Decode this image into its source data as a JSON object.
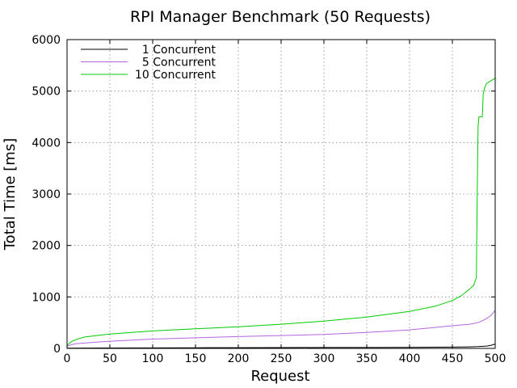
{
  "chart_data": {
    "type": "line",
    "title": "RPI Manager Benchmark (50 Requests)",
    "xlabel": "Request",
    "ylabel": "Total Time [ms]",
    "xlim": [
      0,
      500
    ],
    "ylim": [
      0,
      6000
    ],
    "xticks": [
      0,
      50,
      100,
      150,
      200,
      250,
      300,
      350,
      400,
      450,
      500
    ],
    "yticks": [
      0,
      1000,
      2000,
      3000,
      4000,
      5000,
      6000
    ],
    "grid": true,
    "legend_position": "top-left",
    "series": [
      {
        "name": "1 Concurrent",
        "color": "#000000",
        "x": [
          0,
          50,
          100,
          150,
          200,
          250,
          300,
          350,
          400,
          450,
          470,
          480,
          490,
          495,
          500
        ],
        "y": [
          5,
          8,
          10,
          12,
          14,
          15,
          17,
          18,
          20,
          25,
          30,
          35,
          45,
          60,
          85
        ]
      },
      {
        "name": "5 Concurrent",
        "color": "#b266e0",
        "x": [
          0,
          5,
          10,
          25,
          50,
          100,
          150,
          200,
          250,
          300,
          350,
          400,
          450,
          470,
          480,
          490,
          495,
          498,
          500
        ],
        "y": [
          40,
          70,
          90,
          110,
          140,
          180,
          205,
          230,
          250,
          270,
          310,
          360,
          440,
          470,
          500,
          580,
          640,
          700,
          740
        ]
      },
      {
        "name": "10 Concurrent",
        "color": "#00cc00",
        "x": [
          0,
          3,
          5,
          10,
          20,
          50,
          100,
          150,
          200,
          250,
          300,
          350,
          400,
          430,
          450,
          460,
          470,
          475,
          478,
          479,
          480,
          481,
          482,
          485,
          486,
          488,
          490,
          495,
          500
        ],
        "y": [
          60,
          100,
          130,
          170,
          220,
          280,
          340,
          380,
          420,
          470,
          530,
          610,
          720,
          820,
          930,
          1020,
          1150,
          1230,
          1380,
          2900,
          4300,
          4500,
          4500,
          4500,
          4950,
          5080,
          5150,
          5200,
          5250
        ]
      }
    ]
  }
}
